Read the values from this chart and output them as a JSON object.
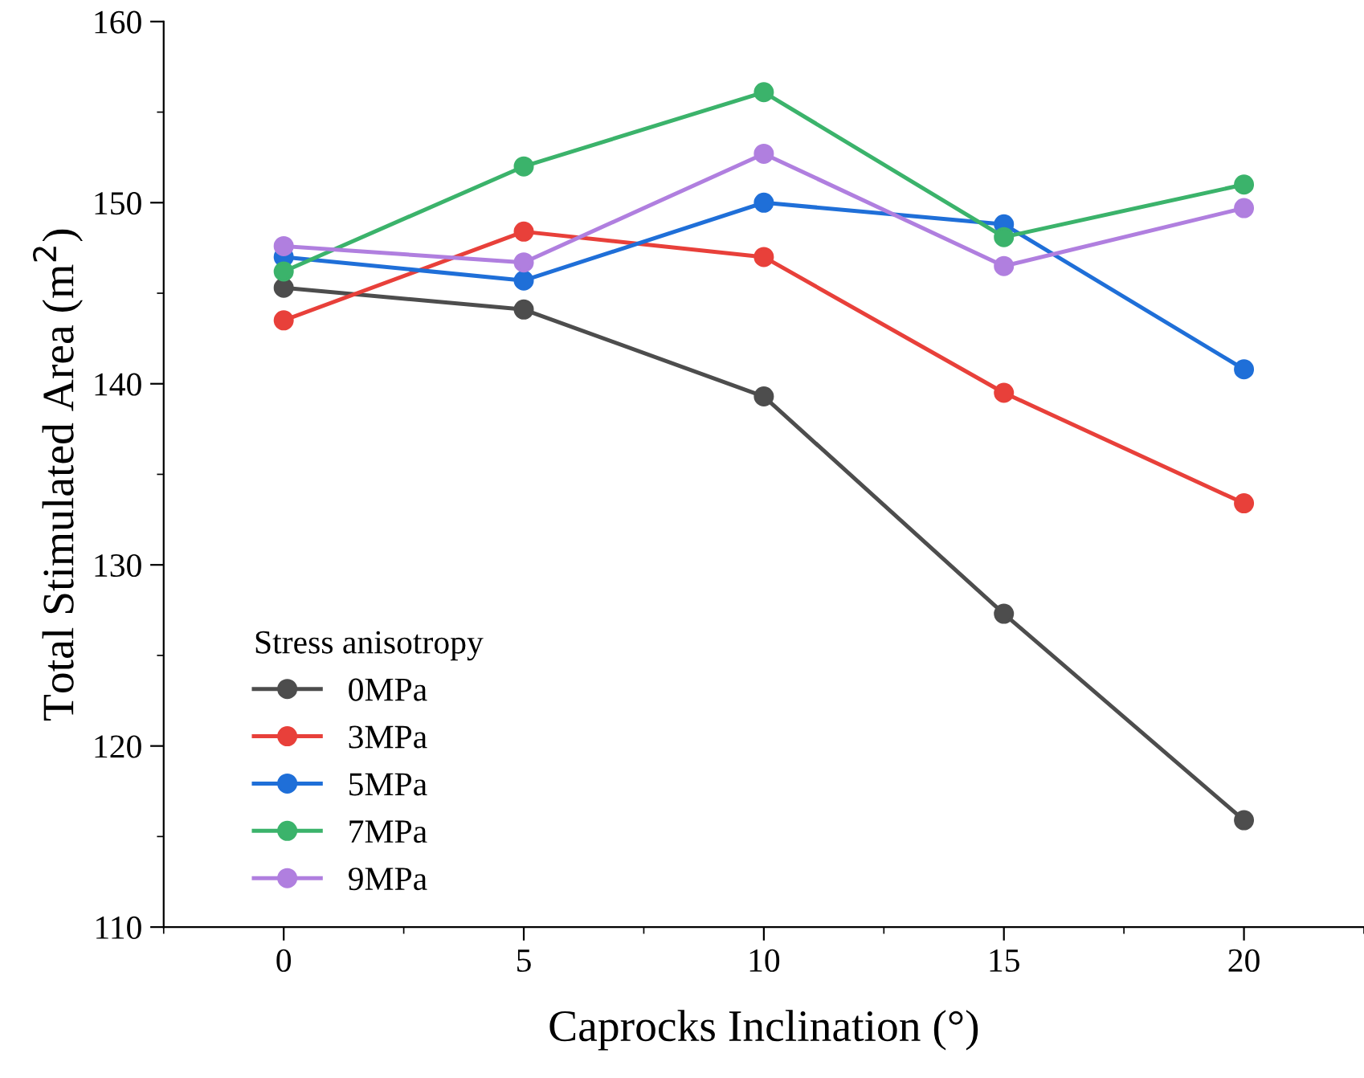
{
  "chart_data": {
    "type": "line",
    "xlabel": "Caprocks Inclination (°)",
    "ylabel": "Total Stimulated Area (m$^{2}$)",
    "legend_title": "Stress anisotropy",
    "legend": "bottom left",
    "marker": "circle",
    "line_style": "solid",
    "grid": false,
    "x": [
      0,
      5,
      10,
      15,
      20
    ],
    "xlim": [
      -2.5,
      22.5
    ],
    "xticks": [
      0,
      5,
      10,
      15,
      20
    ],
    "ylim": [
      110,
      160
    ],
    "yticks": [
      110,
      120,
      130,
      140,
      150,
      160
    ],
    "series": [
      {
        "name": "0MPa",
        "color": "#4d4d4d",
        "values": [
          145.3,
          144.1,
          139.3,
          127.3,
          115.9
        ]
      },
      {
        "name": "3MPa",
        "color": "#e8403a",
        "values": [
          143.5,
          148.4,
          147.0,
          139.5,
          133.4
        ]
      },
      {
        "name": "5MPa",
        "color": "#1f6fd8",
        "values": [
          147.0,
          145.7,
          150.0,
          148.8,
          140.8
        ]
      },
      {
        "name": "7MPa",
        "color": "#3bb36b",
        "values": [
          146.2,
          152.0,
          156.1,
          148.1,
          151.0
        ]
      },
      {
        "name": "9MPa",
        "color": "#b07fdf",
        "values": [
          147.6,
          146.7,
          152.7,
          146.5,
          149.7
        ]
      }
    ]
  }
}
